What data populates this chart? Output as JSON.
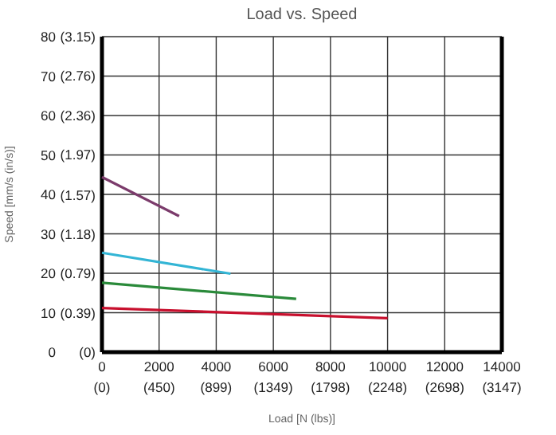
{
  "chart_data": {
    "type": "line",
    "title": "Load vs. Speed",
    "xlabel": "Load [N (lbs)]",
    "ylabel": "Speed [mm/s (in/s)]",
    "xlim": [
      0,
      14000
    ],
    "ylim": [
      0,
      80
    ],
    "xticks": [
      0,
      2000,
      4000,
      6000,
      8000,
      10000,
      12000,
      14000
    ],
    "x2lim": [
      0,
      3147
    ],
    "x2ticks": [
      {
        "value": 0,
        "label": "(0)"
      },
      {
        "value": 450,
        "label": "(450)"
      },
      {
        "value": 899,
        "label": "(899)"
      },
      {
        "value": 1349,
        "label": "(1349)"
      },
      {
        "value": 1798,
        "label": "(1798)"
      },
      {
        "value": 2248,
        "label": "(2248)"
      },
      {
        "value": 2698,
        "label": "(2698)"
      },
      {
        "value": 3147,
        "label": "(3147)"
      }
    ],
    "yticks": [
      0,
      10,
      20,
      30,
      40,
      50,
      60,
      70,
      80
    ],
    "y2lim": [
      0,
      3.15
    ],
    "y2ticks": [
      {
        "value": 0,
        "label": "(0)"
      },
      {
        "value": 0.39,
        "label": "(0.39)"
      },
      {
        "value": 0.79,
        "label": "(0.79)"
      },
      {
        "value": 1.18,
        "label": "(1.18)"
      },
      {
        "value": 1.57,
        "label": "(1.57)"
      },
      {
        "value": 1.97,
        "label": "(1.97)"
      },
      {
        "value": 2.36,
        "label": "(2.36)"
      },
      {
        "value": 2.76,
        "label": "(2.76)"
      },
      {
        "value": 3.15,
        "label": "(3.15)"
      }
    ],
    "grid": true,
    "series": [
      {
        "color": "#7b3b6b",
        "x": [
          0,
          2700
        ],
        "values": [
          44.4,
          34.5
        ]
      },
      {
        "color": "#33b5d5",
        "x": [
          0,
          4500
        ],
        "values": [
          25.2,
          19.9
        ]
      },
      {
        "color": "#2a8a3a",
        "x": [
          0,
          6800
        ],
        "values": [
          17.6,
          13.5
        ]
      },
      {
        "color": "#c8102e",
        "x": [
          0,
          10000
        ],
        "values": [
          11.2,
          8.6
        ]
      }
    ]
  }
}
